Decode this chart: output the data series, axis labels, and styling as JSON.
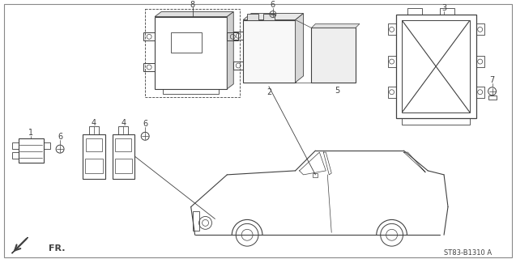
{
  "background_color": "#ffffff",
  "line_color": "#404040",
  "part_number_text": "ST83-B1310 A",
  "fr_label": "FR.",
  "fig_width": 6.37,
  "fig_height": 3.2,
  "dpi": 100
}
